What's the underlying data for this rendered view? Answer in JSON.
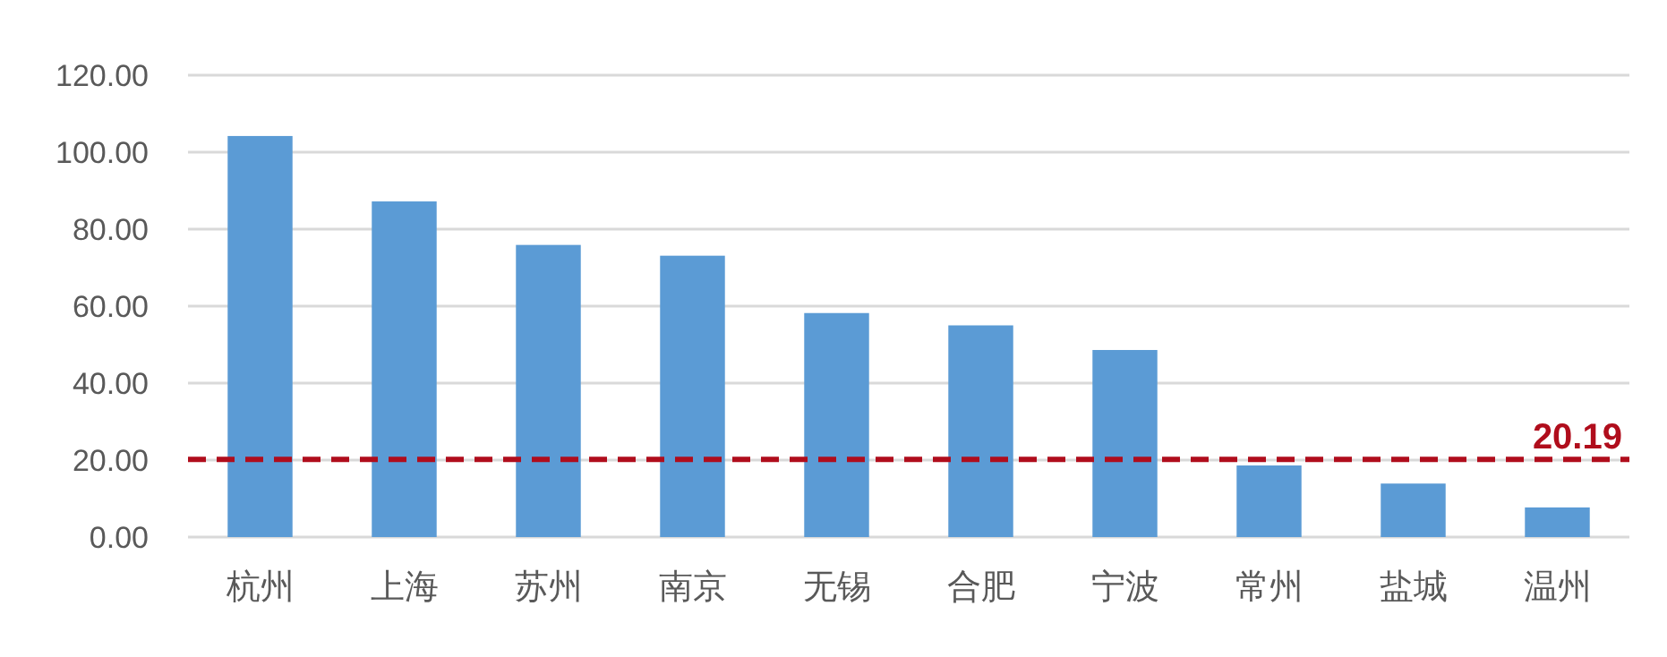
{
  "chart_data": {
    "type": "bar",
    "categories": [
      "杭州",
      "上海",
      "苏州",
      "南京",
      "无锡",
      "合肥",
      "宁波",
      "常州",
      "盐城",
      "温州"
    ],
    "series": [
      {
        "color": "#5b9bd5",
        "values": [
          104.2,
          87.2,
          75.9,
          73.1,
          58.2,
          55.0,
          48.6,
          18.6,
          13.9,
          7.7
        ]
      }
    ],
    "ylim": [
      0,
      120
    ],
    "yticks": [
      {
        "value": 0,
        "label": "0.00"
      },
      {
        "value": 20,
        "label": "20.00"
      },
      {
        "value": 40,
        "label": "40.00"
      },
      {
        "value": 60,
        "label": "60.00"
      },
      {
        "value": 80,
        "label": "80.00"
      },
      {
        "value": 100,
        "label": "100.00"
      },
      {
        "value": 120,
        "label": "120.00"
      }
    ],
    "grid": "y",
    "ref_lines": [
      {
        "axis": "y",
        "value": 20.19,
        "label": "20.19",
        "color": "#b00d1c",
        "line_style": "dashed"
      }
    ]
  }
}
